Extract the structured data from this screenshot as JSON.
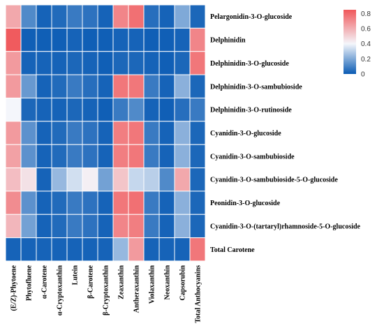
{
  "chart_data": {
    "type": "heatmap",
    "title": "",
    "rows": [
      "Pelargonidin-3-O-glucoside",
      "Delphinidin",
      "Delphinidin-3-O-glucoside",
      "Delphinidin-3-O-sambubioside",
      "Delphinidin-3-O-rutinoside",
      "Cyanidin-3-O-glucoside",
      "Cyanidin-3-O-sambubioside",
      "Cyanidin-3-O-sambubioside-5-O-glucoside",
      "Peonidin-3-O-glucoside",
      "Cyanidin-3-O-(tartaryl)rhamnoside-5-O-glucoside",
      "Total Carotene"
    ],
    "columns": [
      "(E/Z)-Phytoene",
      "Phytofluene",
      "α-Carotene",
      "α-Cryptoxanthin",
      "Lutein",
      "β-Carotene",
      "β-Cryptoxanthin",
      "Zeaxanthin",
      "Antheraxanthin",
      "Violaxanthin",
      "Neoxanthin",
      "Capsorubin",
      "Total Anthocyanins"
    ],
    "values": [
      [
        0.62,
        0.12,
        0.02,
        0.04,
        0.08,
        0.06,
        0.02,
        0.72,
        0.78,
        0.05,
        0.02,
        0.2,
        0.03
      ],
      [
        0.84,
        0.01,
        0.01,
        0.01,
        0.02,
        0.01,
        0.01,
        0.02,
        0.02,
        0.01,
        0.01,
        0.02,
        0.72
      ],
      [
        0.66,
        0.02,
        0.02,
        0.02,
        0.03,
        0.02,
        0.01,
        0.03,
        0.03,
        0.02,
        0.01,
        0.03,
        0.76
      ],
      [
        0.66,
        0.16,
        0.02,
        0.04,
        0.08,
        0.05,
        0.02,
        0.76,
        0.76,
        0.08,
        0.02,
        0.22,
        0.03
      ],
      [
        0.4,
        0.03,
        0.02,
        0.02,
        0.03,
        0.02,
        0.01,
        0.08,
        0.12,
        0.02,
        0.01,
        0.05,
        0.08
      ],
      [
        0.66,
        0.14,
        0.02,
        0.04,
        0.08,
        0.06,
        0.02,
        0.74,
        0.76,
        0.08,
        0.02,
        0.22,
        0.03
      ],
      [
        0.64,
        0.14,
        0.02,
        0.04,
        0.08,
        0.06,
        0.02,
        0.74,
        0.76,
        0.08,
        0.02,
        0.22,
        0.03
      ],
      [
        0.56,
        0.46,
        0.02,
        0.24,
        0.34,
        0.42,
        0.18,
        0.54,
        0.32,
        0.3,
        0.12,
        0.62,
        0.03
      ],
      [
        0.7,
        0.14,
        0.02,
        0.04,
        0.08,
        0.06,
        0.02,
        0.76,
        0.78,
        0.08,
        0.02,
        0.22,
        0.03
      ],
      [
        0.58,
        0.18,
        0.02,
        0.04,
        0.08,
        0.06,
        0.02,
        0.72,
        0.74,
        0.08,
        0.02,
        0.22,
        0.03
      ],
      [
        0.02,
        0.02,
        0.02,
        0.02,
        0.02,
        0.02,
        0.02,
        0.24,
        0.66,
        0.02,
        0.02,
        0.02,
        0.76
      ]
    ],
    "colorscale": {
      "low": "#0a5bb4",
      "mid": "#f4f6fb",
      "high": "#f0575a",
      "min": 0,
      "mid_value": 0.4,
      "max": 0.85
    },
    "legend": {
      "ticks": [
        "0.8",
        "0.6",
        "0.4",
        "0.2",
        "0"
      ],
      "placement": "top-right"
    },
    "grid": true
  }
}
